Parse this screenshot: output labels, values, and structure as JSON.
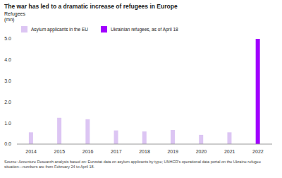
{
  "chart_data": {
    "type": "bar",
    "title": "The war has led to a dramatic increase of refugees in Europe",
    "subtitle": "Refugees (mn)",
    "categories": [
      "2014",
      "2015",
      "2016",
      "2017",
      "2018",
      "2019",
      "2020",
      "2021",
      "2022"
    ],
    "series": [
      {
        "name": "Asylum applicants in the EU",
        "color": "#dcc5f3",
        "values": [
          0.56,
          1.25,
          1.18,
          0.65,
          0.6,
          0.67,
          0.44,
          0.56,
          null
        ]
      },
      {
        "name": "Ukrainian refugees, as of April 18",
        "color": "#a100ff",
        "values": [
          null,
          null,
          null,
          null,
          null,
          null,
          null,
          null,
          5.0
        ]
      }
    ],
    "stacked": true,
    "ylim": [
      0,
      5
    ],
    "yticks": [
      {
        "value": 0,
        "label": "0.0"
      },
      {
        "value": 1,
        "label": "1.0"
      },
      {
        "value": 2,
        "label": "2.0"
      },
      {
        "value": 3,
        "label": "3.0"
      },
      {
        "value": 4,
        "label": "4.0"
      },
      {
        "value": 5,
        "label": "5.0"
      }
    ],
    "grid": false,
    "source": "Source: Accenture Research analysis based on: Eurostat data on asylum applicants by type; UNHCR's operational data portal on the Ukraine refugee situation—numbers are from February 24 to April 18."
  }
}
